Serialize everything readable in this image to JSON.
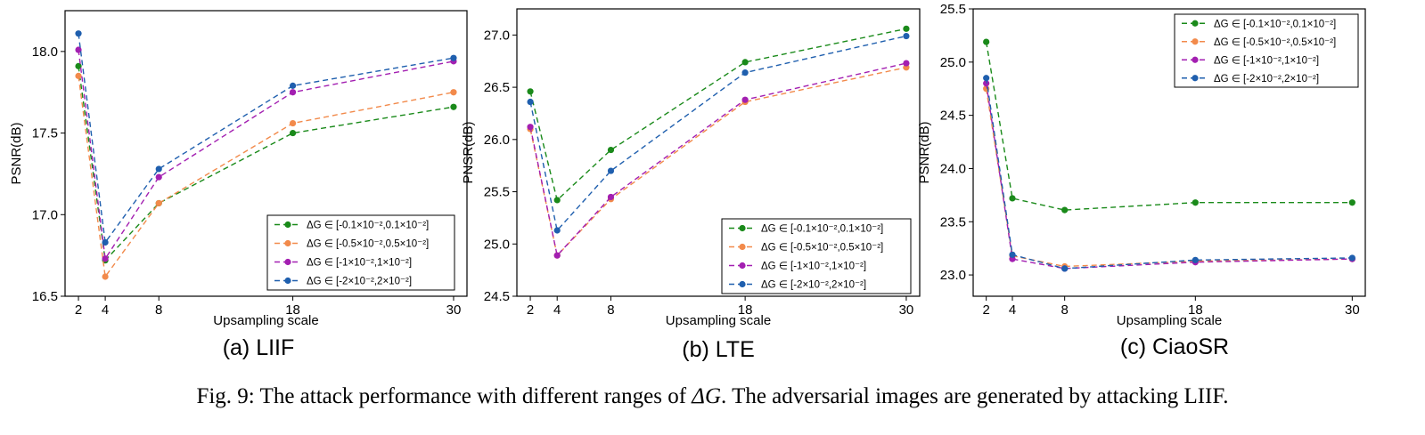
{
  "chart_data": [
    {
      "type": "line",
      "subplot_title": "(a) LIIF",
      "xlabel": "Upsampling scale",
      "ylabel": "PSNR(dB)",
      "x": [
        2,
        4,
        8,
        18,
        30
      ],
      "xticks": [
        "2",
        "4",
        "8",
        "18",
        "30"
      ],
      "xlim": [
        1,
        31
      ],
      "ylim": [
        16.5,
        18.25
      ],
      "yticks": [
        "16.5",
        "17.0",
        "17.5",
        "18.0"
      ],
      "legend_position": "bottom-right",
      "series": [
        {
          "name": "ΔG ∈ [-0.1×10⁻²,0.1×10⁻²]",
          "color": "#1a8a1a",
          "values": [
            17.91,
            16.72,
            17.07,
            17.5,
            17.66
          ]
        },
        {
          "name": "ΔG ∈ [-0.5×10⁻²,0.5×10⁻²]",
          "color": "#f28a4b",
          "values": [
            17.85,
            16.62,
            17.07,
            17.56,
            17.75
          ]
        },
        {
          "name": "ΔG ∈ [-1×10⁻²,1×10⁻²]",
          "color": "#a31fb1",
          "values": [
            18.01,
            16.73,
            17.23,
            17.75,
            17.94
          ]
        },
        {
          "name": "ΔG ∈ [-2×10⁻²,2×10⁻²]",
          "color": "#1f5fae",
          "values": [
            18.11,
            16.83,
            17.28,
            17.79,
            17.96
          ]
        }
      ]
    },
    {
      "type": "line",
      "subplot_title": "(b) LTE",
      "xlabel": "Upsampling scale",
      "ylabel": "PNSR(dB)",
      "x": [
        2,
        4,
        8,
        18,
        30
      ],
      "xticks": [
        "2",
        "4",
        "8",
        "18",
        "30"
      ],
      "xlim": [
        1,
        31
      ],
      "ylim": [
        24.5,
        27.25
      ],
      "yticks": [
        "24.5",
        "25.0",
        "25.5",
        "26.0",
        "26.5",
        "27.0"
      ],
      "legend_position": "bottom-right",
      "series": [
        {
          "name": "ΔG ∈ [-0.1×10⁻²,0.1×10⁻²]",
          "color": "#1a8a1a",
          "values": [
            26.46,
            25.42,
            25.9,
            26.74,
            27.06
          ]
        },
        {
          "name": "ΔG ∈ [-0.5×10⁻²,0.5×10⁻²]",
          "color": "#f28a4b",
          "values": [
            26.1,
            24.89,
            25.43,
            26.36,
            26.69
          ]
        },
        {
          "name": "ΔG ∈ [-1×10⁻²,1×10⁻²]",
          "color": "#a31fb1",
          "values": [
            26.12,
            24.89,
            25.45,
            26.38,
            26.73
          ]
        },
        {
          "name": "ΔG ∈ [-2×10⁻²,2×10⁻²]",
          "color": "#1f5fae",
          "values": [
            26.36,
            25.13,
            25.7,
            26.64,
            26.99
          ]
        }
      ]
    },
    {
      "type": "line",
      "subplot_title": "(c) CiaoSR",
      "xlabel": "Upsampling scale",
      "ylabel": "PSNR(dB)",
      "x": [
        2,
        4,
        8,
        18,
        30
      ],
      "xticks": [
        "2",
        "4",
        "8",
        "18",
        "30"
      ],
      "xlim": [
        1,
        31
      ],
      "ylim": [
        22.8,
        25.5
      ],
      "yticks": [
        "23.0",
        "23.5",
        "24.0",
        "24.5",
        "25.0",
        "25.5"
      ],
      "legend_position": "top-right",
      "series": [
        {
          "name": "ΔG ∈ [-0.1×10⁻²,0.1×10⁻²]",
          "color": "#1a8a1a",
          "values": [
            25.19,
            23.72,
            23.61,
            23.68,
            23.68
          ]
        },
        {
          "name": "ΔG ∈ [-0.5×10⁻²,0.5×10⁻²]",
          "color": "#f28a4b",
          "values": [
            24.75,
            23.18,
            23.08,
            23.13,
            23.15
          ]
        },
        {
          "name": "ΔG ∈ [-1×10⁻²,1×10⁻²]",
          "color": "#a31fb1",
          "values": [
            24.8,
            23.15,
            23.06,
            23.12,
            23.15
          ]
        },
        {
          "name": "ΔG ∈ [-2×10⁻²,2×10⁻²]",
          "color": "#1f5fae",
          "values": [
            24.85,
            23.19,
            23.06,
            23.14,
            23.16
          ]
        }
      ]
    }
  ],
  "caption": {
    "prefix": "Fig. 9: The attack performance with different ranges of ",
    "symbol": "ΔG",
    "suffix": ". The adversarial images are generated by attacking LIIF."
  }
}
